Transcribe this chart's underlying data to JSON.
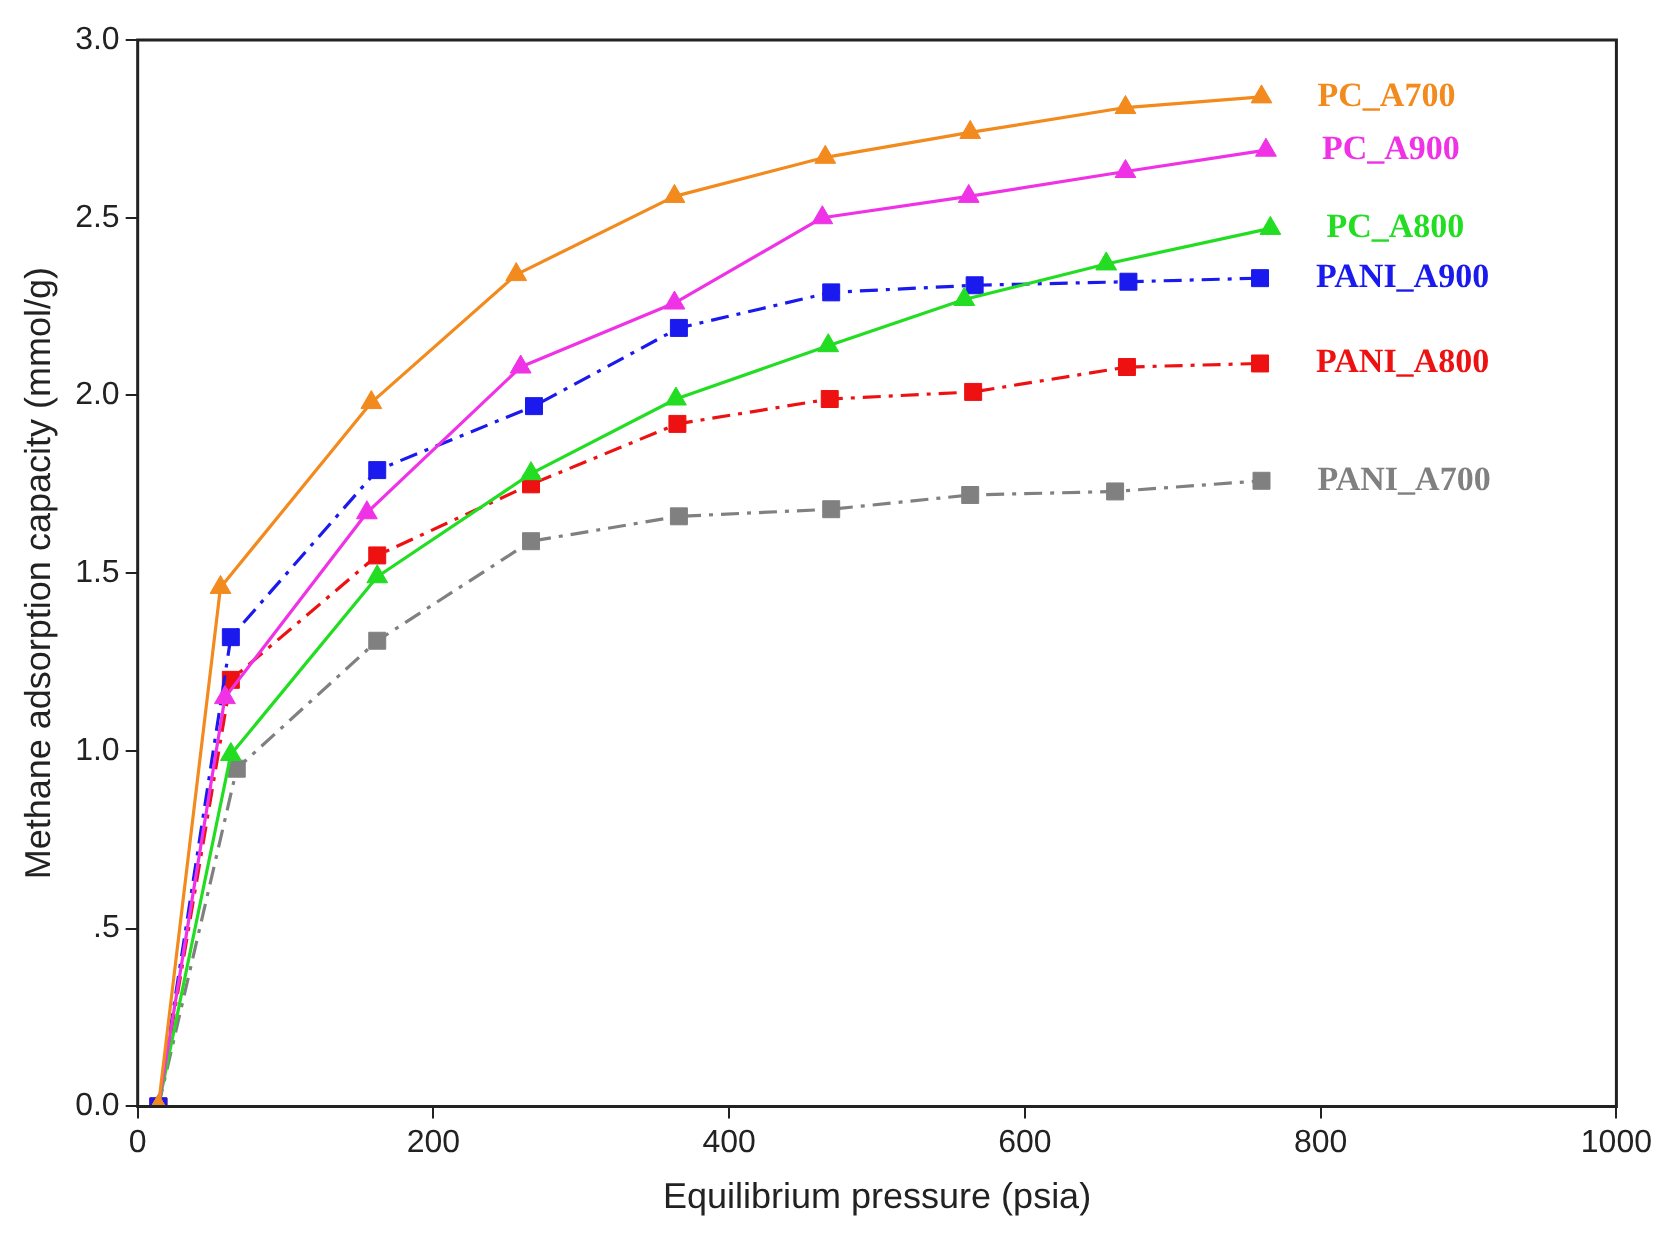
{
  "chart_data": {
    "type": "line",
    "xlabel": "Equilibrium pressure (psia)",
    "ylabel": "Methane adsorption capacity (mmol/g)",
    "xlim": [
      0,
      1000
    ],
    "xticks": [
      0,
      200,
      400,
      600,
      800,
      1000
    ],
    "ylim": [
      0,
      3
    ],
    "yticks": [
      {
        "value": 0,
        "label": "0.0"
      },
      {
        "value": 0.5,
        "label": ".5"
      },
      {
        "value": 1,
        "label": "1.0"
      },
      {
        "value": 1.5,
        "label": "1.5"
      },
      {
        "value": 2,
        "label": "2.0"
      },
      {
        "value": 2.5,
        "label": "2.5"
      },
      {
        "value": 3,
        "label": "3.0"
      }
    ],
    "grid": false,
    "legend": false,
    "series": [
      {
        "name": "PC_A700",
        "color": "#f28a1e",
        "marker": "triangle",
        "line_style": "solid",
        "x": [
          14,
          56,
          158,
          256,
          363,
          465,
          563,
          668,
          760
        ],
        "values": [
          0,
          1.46,
          1.98,
          2.34,
          2.56,
          2.67,
          2.74,
          2.81,
          2.84
        ]
      },
      {
        "name": "PC_A900",
        "color": "#f032e6",
        "marker": "triangle",
        "line_style": "solid",
        "x": [
          14,
          59,
          155,
          259,
          363,
          463,
          562,
          668,
          763
        ],
        "values": [
          0,
          1.15,
          1.67,
          2.08,
          2.26,
          2.5,
          2.56,
          2.63,
          2.69
        ]
      },
      {
        "name": "PC_A800",
        "color": "#22dd22",
        "marker": "triangle",
        "line_style": "solid",
        "x": [
          14,
          63,
          162,
          266,
          364,
          467,
          559,
          655,
          766
        ],
        "values": [
          0,
          0.99,
          1.49,
          1.78,
          1.99,
          2.14,
          2.27,
          2.37,
          2.47
        ]
      },
      {
        "name": "PANI_A900",
        "color": "#1a1aee",
        "marker": "square",
        "line_style": "dashed",
        "x": [
          14,
          63,
          162,
          268,
          366,
          469,
          566,
          670,
          759
        ],
        "values": [
          0,
          1.32,
          1.79,
          1.97,
          2.19,
          2.29,
          2.31,
          2.32,
          2.33
        ]
      },
      {
        "name": "PANI_A800",
        "color": "#ee1111",
        "marker": "square",
        "line_style": "dashed",
        "x": [
          14,
          63,
          162,
          266,
          365,
          468,
          565,
          669,
          759
        ],
        "values": [
          0,
          1.2,
          1.55,
          1.75,
          1.92,
          1.99,
          2.01,
          2.08,
          2.09
        ]
      },
      {
        "name": "PANI_A700",
        "color": "#808080",
        "marker": "square",
        "line_style": "dashed",
        "x": [
          14,
          67,
          162,
          266,
          366,
          469,
          563,
          661,
          760
        ],
        "values": [
          0,
          0.95,
          1.31,
          1.59,
          1.66,
          1.68,
          1.72,
          1.73,
          1.76
        ]
      }
    ]
  }
}
